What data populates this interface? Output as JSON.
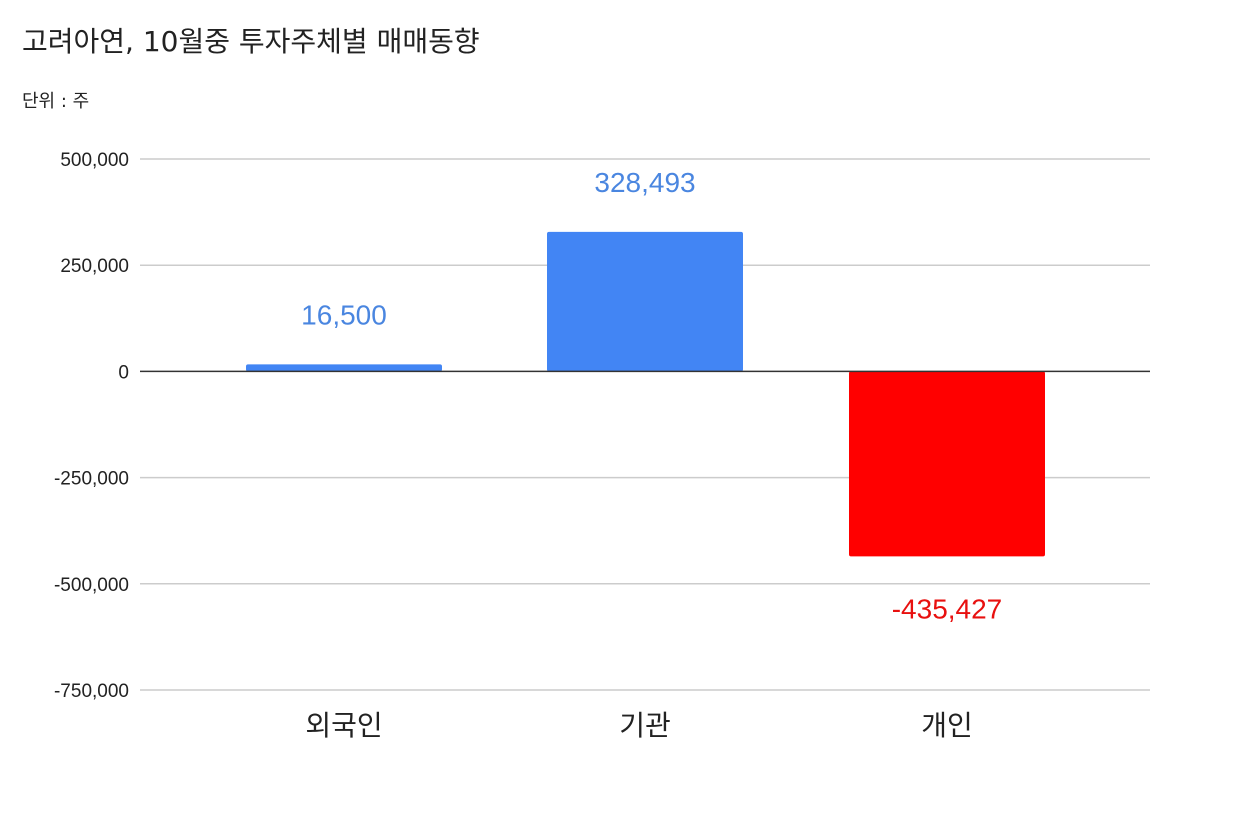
{
  "header": {
    "title": "고려아연, 10월중 투자주체별 매매동향",
    "unit": "단위 : 주"
  },
  "colors": {
    "positive": "#4285f4",
    "negative": "#ff0000",
    "positive_label": "#4a86e0",
    "negative_label": "#e8100f",
    "grid": "#cccccc",
    "zero_line": "#333333",
    "text": "#222222"
  },
  "chart_data": {
    "type": "bar",
    "title": "고려아연, 10월중 투자주체별 매매동향",
    "subtitle": "단위 : 주",
    "categories": [
      "외국인",
      "기관",
      "개인"
    ],
    "values": [
      16500,
      328493,
      -435427
    ],
    "value_labels": [
      "16,500",
      "328,493",
      "-435,427"
    ],
    "ylim": [
      -750000,
      500000
    ],
    "yticks": [
      500000,
      250000,
      0,
      -250000,
      -500000,
      -750000
    ],
    "ytick_labels": [
      "500,000",
      "250,000",
      "0",
      "-250,000",
      "-500,000",
      "-750,000"
    ],
    "grid": true,
    "legend": "none"
  }
}
